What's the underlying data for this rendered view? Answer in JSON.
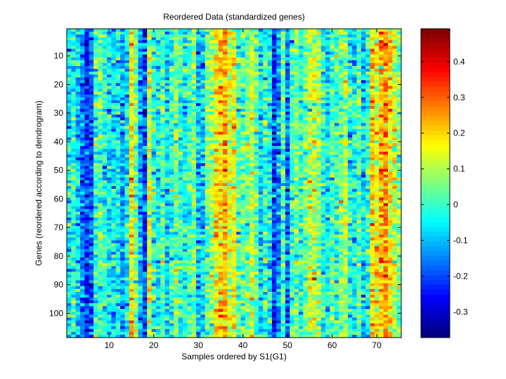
{
  "chart_data": {
    "type": "heatmap",
    "title": "Reordered Data (standardized genes)",
    "xlabel": "Samples ordered by S1(G1)",
    "ylabel": "Genes (reordered according to dendrogram)",
    "n_columns": 75,
    "n_rows": 108,
    "xlim": [
      0.5,
      75.5
    ],
    "ylim": [
      0.5,
      108.5
    ],
    "xticks": [
      10,
      20,
      30,
      40,
      50,
      60,
      70
    ],
    "yticks": [
      10,
      20,
      30,
      40,
      50,
      60,
      70,
      80,
      90,
      100
    ],
    "colormap": "jet",
    "clim": [
      -0.372,
      0.492
    ],
    "colorbar_ticks": [
      -0.3,
      -0.2,
      -0.1,
      0,
      0.1,
      0.2,
      0.3,
      0.4
    ],
    "colorbar_tick_labels": [
      "-0.3",
      "-0.2",
      "-0.1",
      "0",
      "0.1",
      "0.2",
      "0.3",
      "0.4"
    ],
    "noise_std_approx": 0.07,
    "column_means_approx": [
      -0.05,
      -0.02,
      -0.08,
      -0.15,
      -0.22,
      -0.18,
      0.0,
      0.03,
      -0.03,
      -0.05,
      -0.07,
      -0.03,
      -0.12,
      -0.06,
      0.18,
      0.05,
      -0.1,
      -0.22,
      0.12,
      0.0,
      -0.04,
      0.02,
      -0.06,
      -0.02,
      0.05,
      -0.02,
      -0.05,
      0.0,
      0.06,
      -0.1,
      -0.08,
      0.05,
      0.08,
      0.18,
      0.2,
      0.22,
      0.12,
      0.15,
      0.02,
      0.03,
      0.05,
      0.12,
      0.04,
      -0.06,
      0.0,
      -0.05,
      -0.22,
      -0.15,
      0.02,
      -0.18,
      0.0,
      0.05,
      -0.02,
      0.03,
      0.1,
      0.12,
      0.08,
      -0.02,
      -0.05,
      0.02,
      0.0,
      0.06,
      0.1,
      -0.02,
      -0.05,
      0.02,
      -0.08,
      -0.02,
      0.2,
      0.15,
      0.22,
      0.25,
      0.18,
      0.12,
      0.05
    ]
  }
}
